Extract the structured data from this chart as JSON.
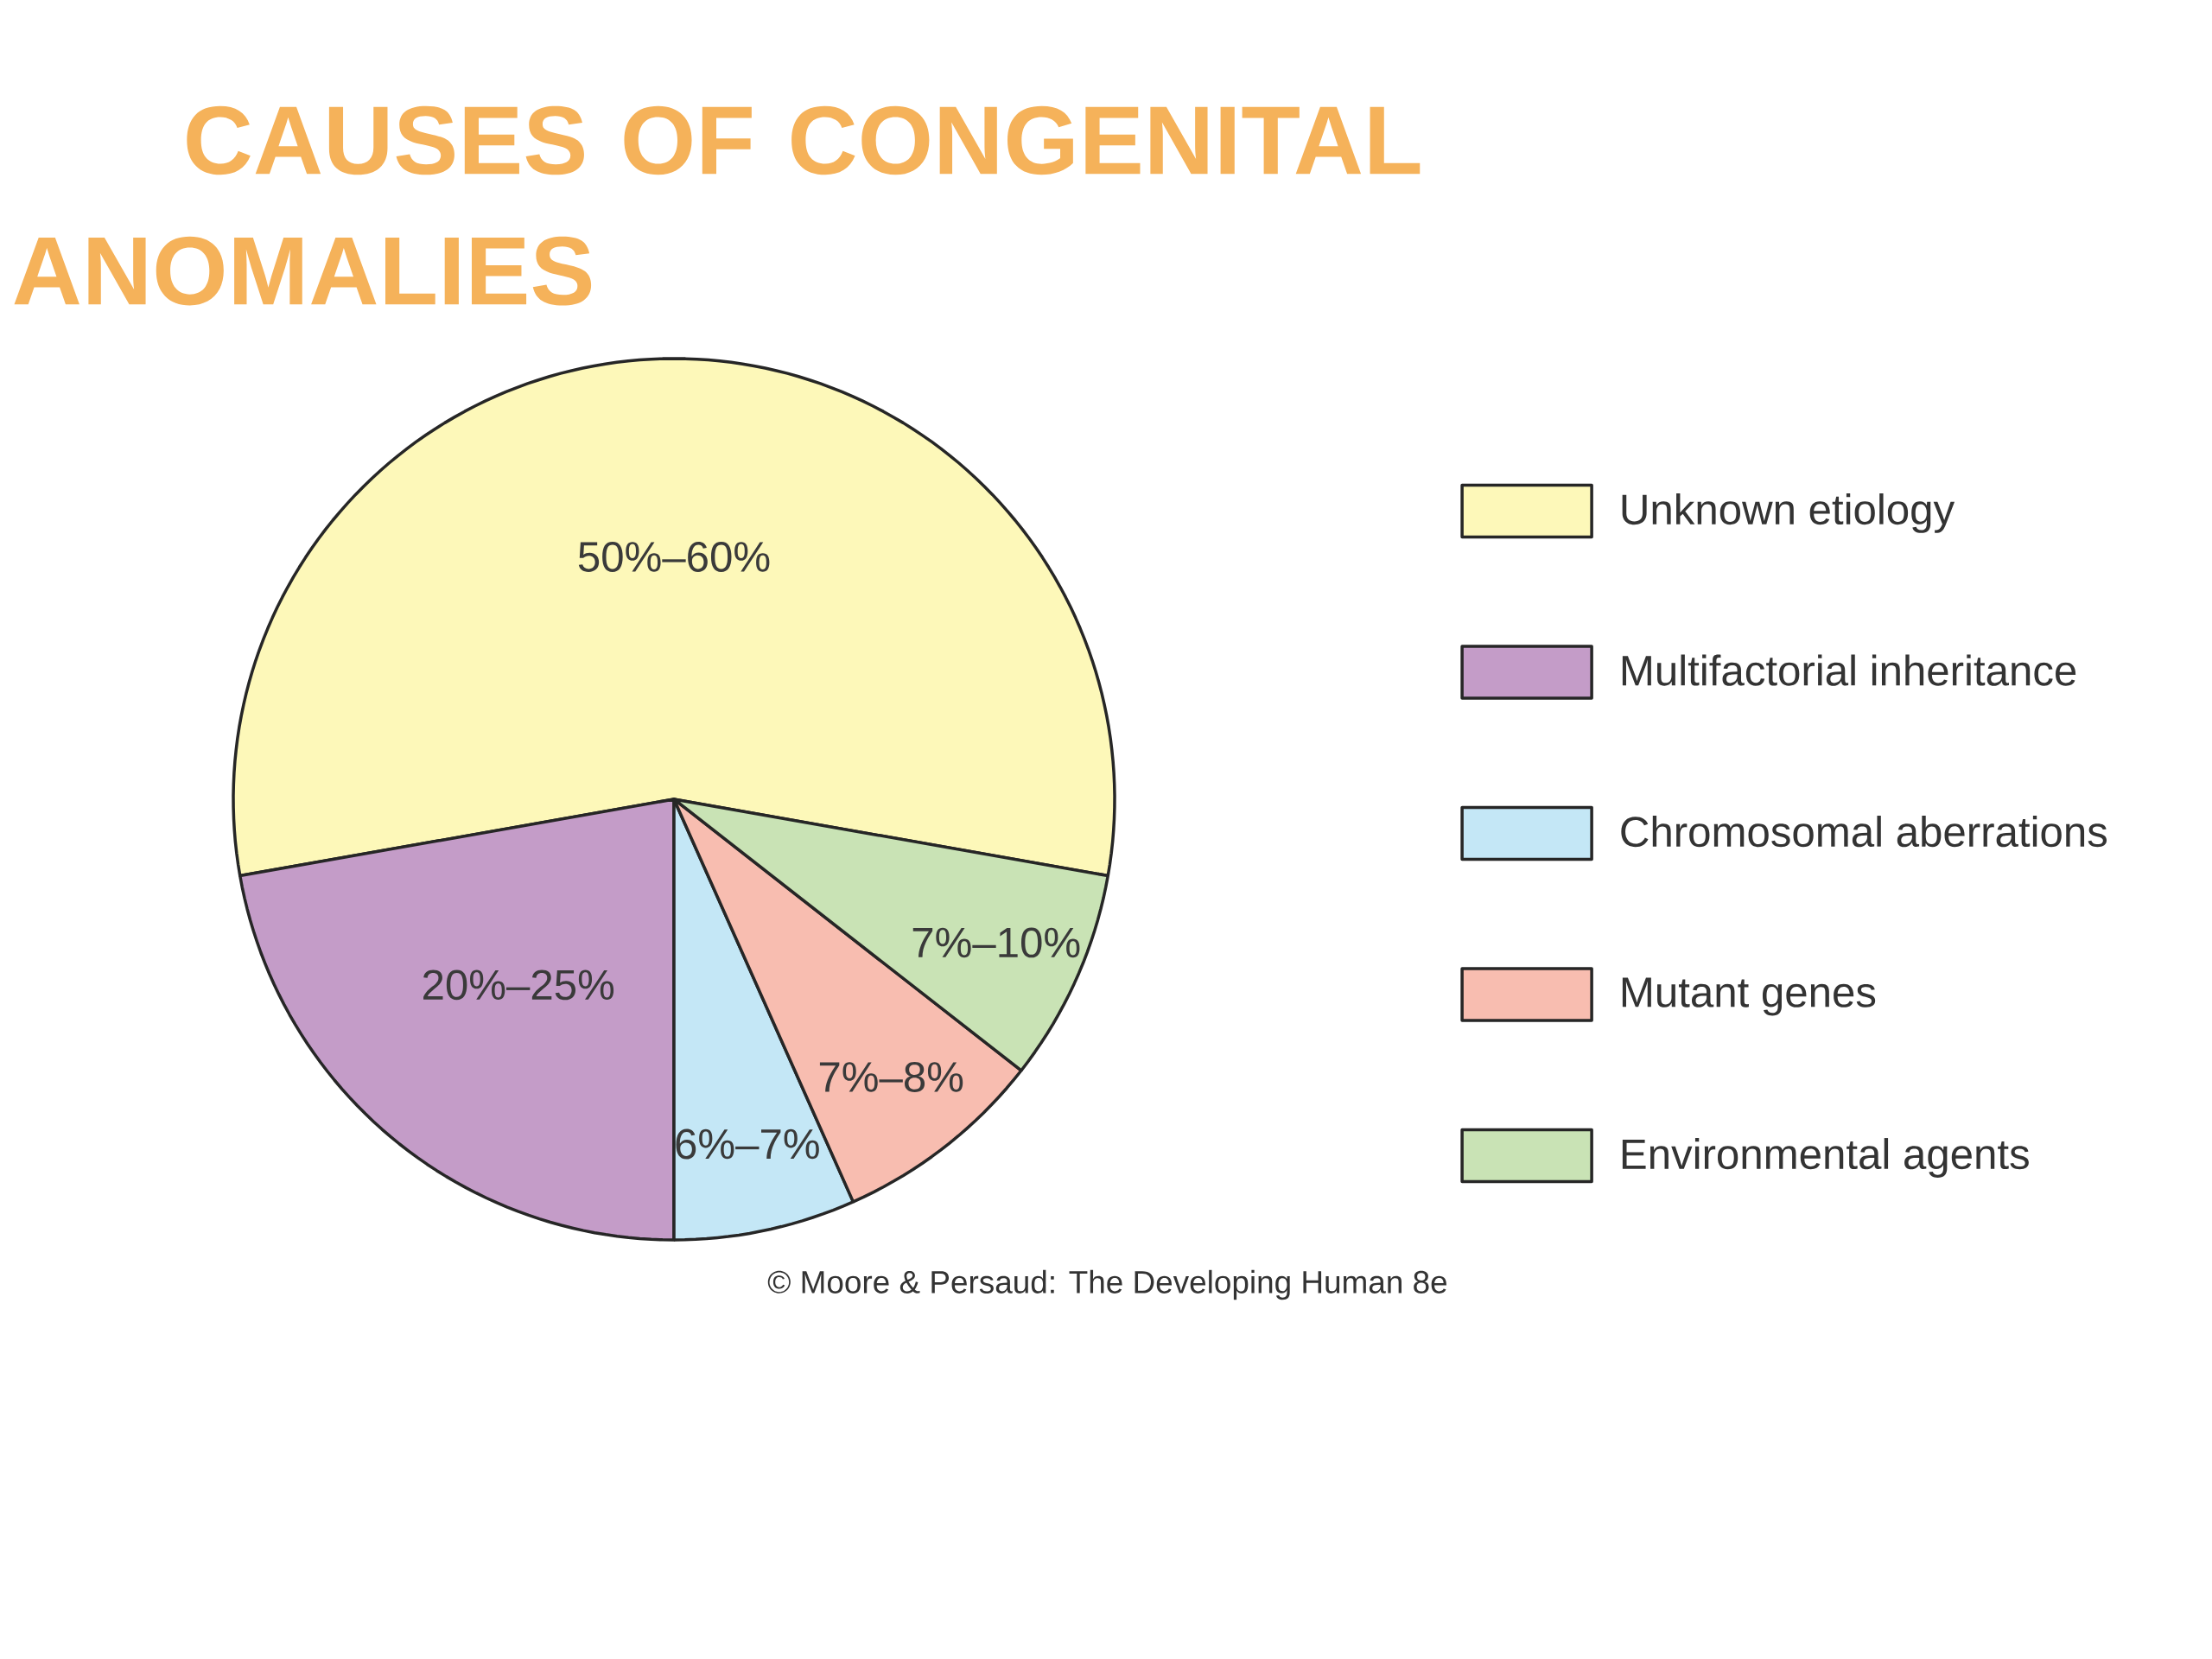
{
  "chart_data": {
    "type": "pie",
    "title": "CAUSES OF CONGENITAL ANOMALIES",
    "categories": [
      "Unknown etiology",
      "Multifactorial inheritance",
      "Chromosomal aberrations",
      "Mutant genes",
      "Environmental agents"
    ],
    "values": [
      50,
      20,
      6,
      7,
      7
    ],
    "value_labels": [
      "50%–60%",
      "20%–25%",
      "6%–7%",
      "7%–8%",
      "7%–10%"
    ],
    "colors": [
      "#fdf8b9",
      "#c49cc8",
      "#c4e7f6",
      "#f8bdb0",
      "#c9e3b5"
    ],
    "legend": "right",
    "annotations": [
      "© Moore & Persaud: The Developing Human 8e"
    ]
  }
}
